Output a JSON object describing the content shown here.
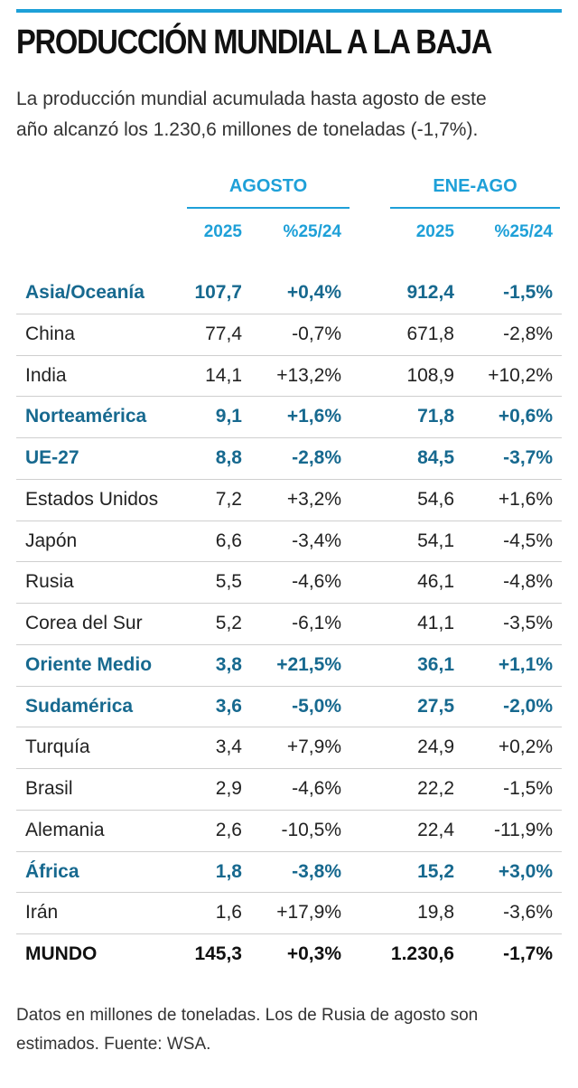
{
  "header": {
    "title": "PRODUCCIÓN MUNDIAL A LA BAJA",
    "subtitle_lines": [
      "La producción mundial acumulada hasta agosto de este",
      "año alcanzó los 1.230,6 millones de toneladas (-1,7%)."
    ]
  },
  "table": {
    "groups": [
      "AGOSTO",
      "ENE-AGO"
    ],
    "columns": [
      "2025",
      "%25/24",
      "2025",
      "%25/24"
    ],
    "rows": [
      {
        "cells": [
          "Asia/Oceanía",
          "107,7",
          "+0,4%",
          "912,4",
          "-1,5%"
        ],
        "color": "#17698f",
        "bold": true
      },
      {
        "cells": [
          "China",
          "77,4",
          "-0,7%",
          "671,8",
          "-2,8%"
        ],
        "color": "#222222",
        "bold": false
      },
      {
        "cells": [
          "India",
          "14,1",
          "+13,2%",
          "108,9",
          "+10,2%"
        ],
        "color": "#222222",
        "bold": false
      },
      {
        "cells": [
          "Norteamérica",
          "9,1",
          "+1,6%",
          "71,8",
          "+0,6%"
        ],
        "color": "#17698f",
        "bold": true
      },
      {
        "cells": [
          "UE-27",
          "8,8",
          "-2,8%",
          "84,5",
          "-3,7%"
        ],
        "color": "#17698f",
        "bold": true
      },
      {
        "cells": [
          "Estados Unidos",
          "7,2",
          "+3,2%",
          "54,6",
          "+1,6%"
        ],
        "color": "#222222",
        "bold": false
      },
      {
        "cells": [
          "Japón",
          "6,6",
          "-3,4%",
          "54,1",
          "-4,5%"
        ],
        "color": "#222222",
        "bold": false
      },
      {
        "cells": [
          "Rusia",
          "5,5",
          "-4,6%",
          "46,1",
          "-4,8%"
        ],
        "color": "#222222",
        "bold": false
      },
      {
        "cells": [
          "Corea del Sur",
          "5,2",
          "-6,1%",
          "41,1",
          "-3,5%"
        ],
        "color": "#222222",
        "bold": false
      },
      {
        "cells": [
          "Oriente Medio",
          "3,8",
          "+21,5%",
          "36,1",
          "+1,1%"
        ],
        "color": "#17698f",
        "bold": true
      },
      {
        "cells": [
          "Sudamérica",
          "3,6",
          "-5,0%",
          "27,5",
          "-2,0%"
        ],
        "color": "#17698f",
        "bold": true
      },
      {
        "cells": [
          "Turquía",
          "3,4",
          "+7,9%",
          "24,9",
          "+0,2%"
        ],
        "color": "#222222",
        "bold": false
      },
      {
        "cells": [
          "Brasil",
          "2,9",
          "-4,6%",
          "22,2",
          "-1,5%"
        ],
        "color": "#222222",
        "bold": false
      },
      {
        "cells": [
          "Alemania",
          "2,6",
          "-10,5%",
          "22,4",
          "-11,9%"
        ],
        "color": "#222222",
        "bold": false
      },
      {
        "cells": [
          "África",
          "1,8",
          "-3,8%",
          "15,2",
          "+3,0%"
        ],
        "color": "#17698f",
        "bold": true
      },
      {
        "cells": [
          "Irán",
          "1,6",
          "+17,9%",
          "19,8",
          "-3,6%"
        ],
        "color": "#222222",
        "bold": false
      },
      {
        "cells": [
          "MUNDO",
          "145,3",
          "+0,3%",
          "1.230,6",
          "-1,7%"
        ],
        "color": "#111111",
        "bold": true
      }
    ]
  },
  "footer": {
    "lines": [
      "Datos en millones de toneladas. Los de Rusia de agosto son",
      "estimados. Fuente: WSA."
    ]
  }
}
